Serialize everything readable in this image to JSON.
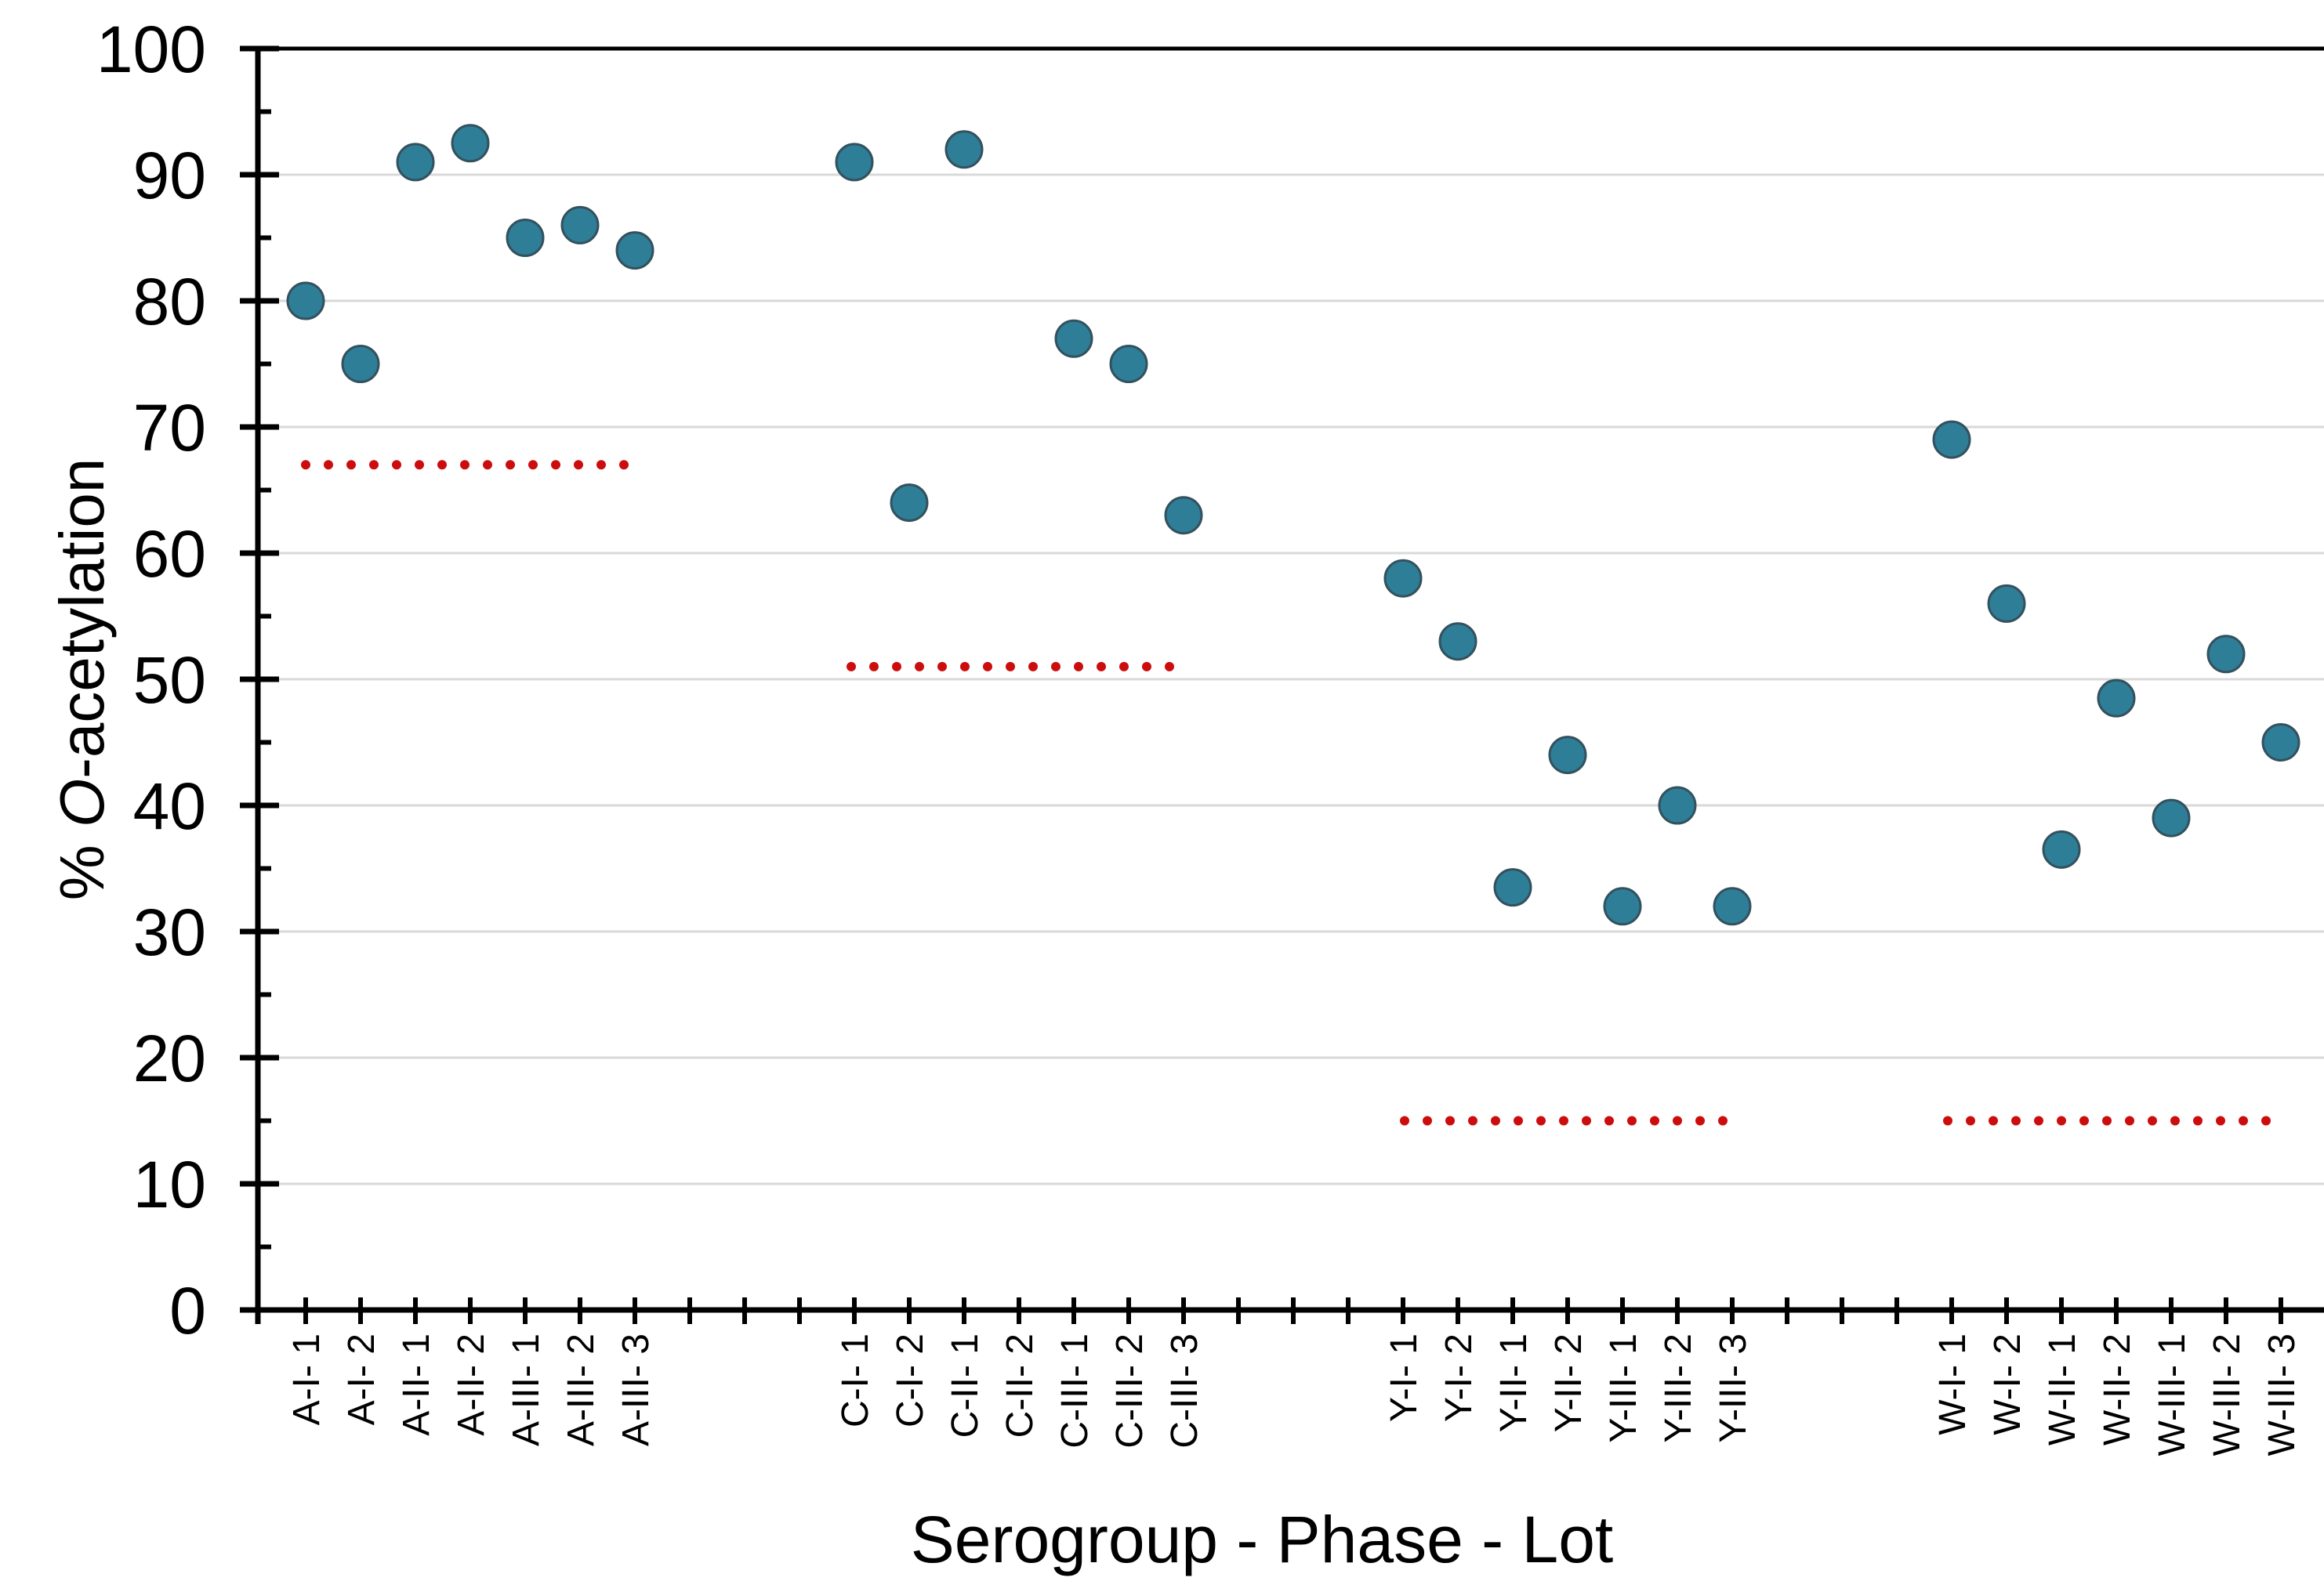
{
  "chart_data": {
    "type": "scatter",
    "title": "",
    "xlabel": "Serogroup - Phase - Lot",
    "ylabel": "% O-acetylation",
    "ylabel_italic_char": "O",
    "ylim": [
      0,
      100
    ],
    "y_ticks": [
      0,
      10,
      20,
      30,
      40,
      50,
      60,
      70,
      80,
      90,
      100
    ],
    "y_minor_tick_step": 5,
    "grid": "horizontal gridlines every 10",
    "legend_position": "none",
    "marker": {
      "shape": "circle",
      "fill": "#2E7E97",
      "edge": "#33515E"
    },
    "reference_line_style": {
      "pattern": "dotted",
      "color": "#CC0D0D"
    },
    "groups": [
      {
        "serogroup": "A",
        "categories": [
          "A-I- 1",
          "A-I- 2",
          "A-II- 1",
          "A-II- 2",
          "A-III- 1",
          "A-III- 2",
          "A-III- 3"
        ],
        "values": [
          80,
          75,
          91,
          92.5,
          85,
          86,
          84
        ],
        "reference_value": 67
      },
      {
        "serogroup": "C",
        "categories": [
          "C-I- 1",
          "C-I- 2",
          "C-II- 1",
          "C-II- 2",
          "C-III- 1",
          "C-III- 2",
          "C-III- 3"
        ],
        "values": [
          91,
          64,
          92,
          null,
          77,
          75,
          63
        ],
        "reference_value": 51
      },
      {
        "serogroup": "Y",
        "categories": [
          "Y-I- 1",
          "Y-I- 2",
          "Y-II- 1",
          "Y-II- 2",
          "Y-III- 1",
          "Y-III- 2",
          "Y-III- 3"
        ],
        "values": [
          58,
          53,
          33.5,
          44,
          32,
          40,
          32
        ],
        "reference_value": 15
      },
      {
        "serogroup": "W",
        "categories": [
          "W-I- 1",
          "W-I- 2",
          "W-II- 1",
          "W-II- 2",
          "W-III- 1",
          "W-III- 2",
          "W-III- 3"
        ],
        "values": [
          69,
          56,
          36.5,
          48.5,
          39,
          52,
          45
        ],
        "reference_value": 15
      }
    ],
    "colors": {
      "gridline": "#D9D9D9",
      "axis": "#000000",
      "text": "#000000"
    }
  }
}
